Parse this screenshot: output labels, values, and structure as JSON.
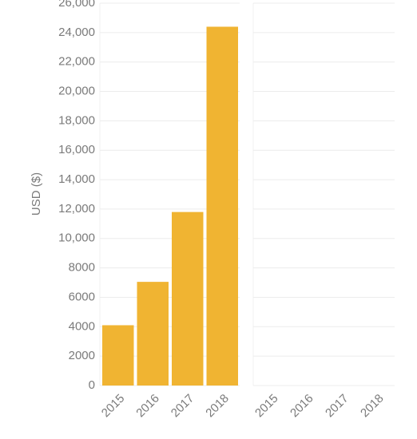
{
  "chart_data": [
    {
      "type": "bar",
      "y_label": "USD ($)",
      "categories": [
        "2015",
        "2016",
        "2017",
        "2018"
      ],
      "values": [
        4100,
        7050,
        11800,
        24400
      ],
      "color": "#f0b432",
      "ylim": [
        0,
        26000
      ],
      "yticks": [
        0,
        2000,
        4000,
        6000,
        8000,
        {
          "value": 10000,
          "label": "10,000"
        },
        {
          "value": 12000,
          "label": "12,000"
        },
        {
          "value": 14000,
          "label": "14,000"
        },
        {
          "value": 16000,
          "label": "16,000"
        },
        {
          "value": 18000,
          "label": "18,000"
        },
        {
          "value": 20000,
          "label": "20,000"
        },
        {
          "value": 22000,
          "label": "22,000"
        },
        {
          "value": 24000,
          "label": "24,000"
        },
        {
          "value": 26000,
          "label": "26,000"
        }
      ],
      "grid": true
    },
    {
      "type": "bar",
      "categories": [
        "2015",
        "2016",
        "2017",
        "2018"
      ],
      "values": [
        null,
        null,
        null,
        null
      ],
      "color": "#f0b432",
      "ylim": [
        0,
        26000
      ],
      "yticks": [
        0,
        2000,
        4000,
        6000,
        8000,
        10000,
        12000,
        14000,
        16000,
        18000,
        20000,
        22000,
        24000,
        26000
      ],
      "grid": true
    }
  ]
}
